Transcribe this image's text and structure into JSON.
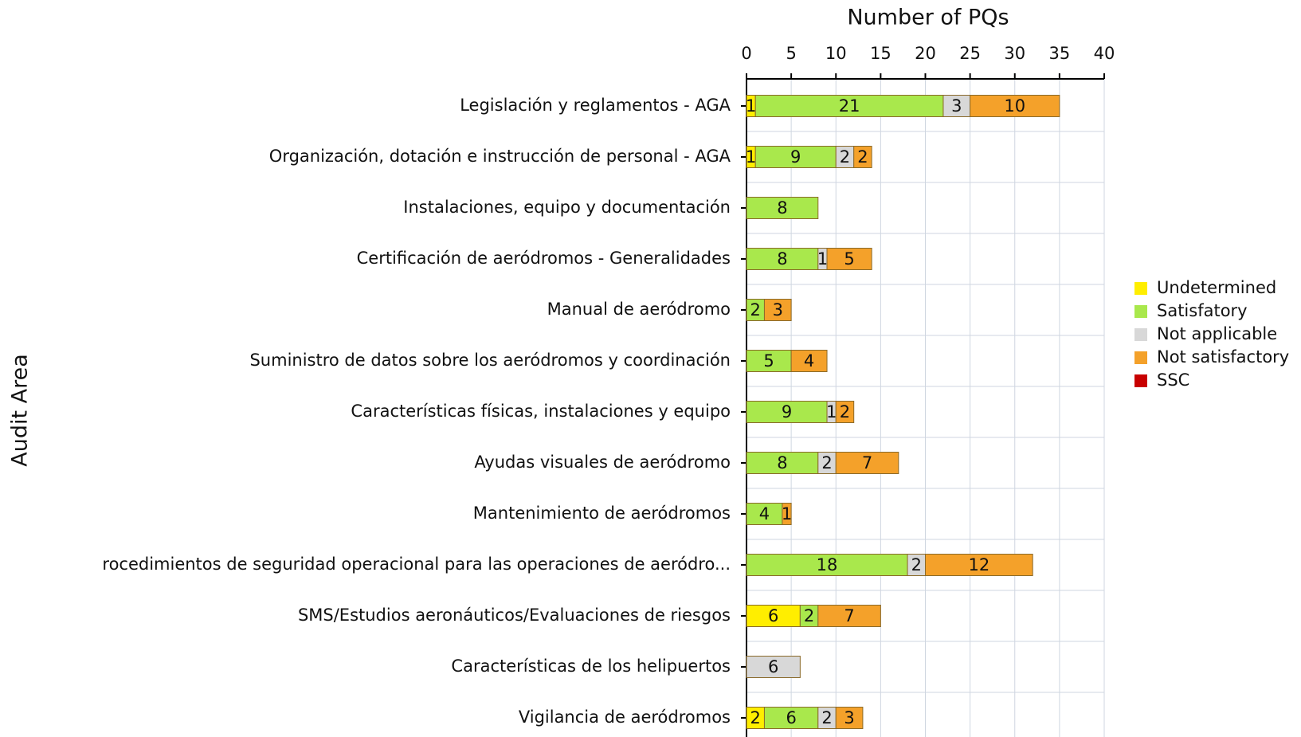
{
  "chart_data": {
    "type": "stacked-bar-horizontal",
    "title": "Number of PQs",
    "y_label": "Audit Area",
    "categories": [
      "Legislación y reglamentos - AGA",
      "Organización, dotación e instrucción de personal - AGA",
      "Instalaciones, equipo y documentación",
      "Certificación de aeródromos - Generalidades",
      "Manual de aeródromo",
      "Suministro de datos sobre los aeródromos y coordinación",
      "Características físicas, instalaciones y equipo",
      "Ayudas visuales de aeródromo",
      "Mantenimiento de aeródromos",
      "rocedimientos de seguridad operacional para las operaciones de aeródro...",
      "SMS/Estudios aeronáuticos/Evaluaciones de riesgos",
      "Características de los helipuertos",
      "Vigilancia de aeródromos"
    ],
    "series": [
      {
        "name": "Undetermined",
        "color": "#ffee00",
        "values": [
          1,
          1,
          null,
          null,
          null,
          null,
          null,
          null,
          null,
          null,
          6,
          null,
          2
        ]
      },
      {
        "name": "Satisfatory",
        "color": "#a9e84c",
        "values": [
          21,
          9,
          8,
          8,
          2,
          5,
          9,
          8,
          4,
          18,
          2,
          null,
          6
        ]
      },
      {
        "name": "Not applicable",
        "color": "#d8d8d8",
        "values": [
          3,
          2,
          null,
          1,
          null,
          null,
          1,
          2,
          null,
          2,
          null,
          6,
          2
        ]
      },
      {
        "name": "Not satisfactory",
        "color": "#f4a12a",
        "values": [
          10,
          2,
          null,
          5,
          3,
          4,
          2,
          7,
          1,
          12,
          7,
          null,
          3
        ]
      },
      {
        "name": "SSC",
        "color": "#c80000",
        "values": [
          null,
          null,
          null,
          null,
          null,
          null,
          null,
          null,
          null,
          null,
          null,
          null,
          null
        ]
      }
    ],
    "xlim": [
      0,
      40
    ],
    "xticks": [
      0,
      5,
      10,
      15,
      20,
      25,
      30,
      35,
      40
    ],
    "grid": true
  }
}
